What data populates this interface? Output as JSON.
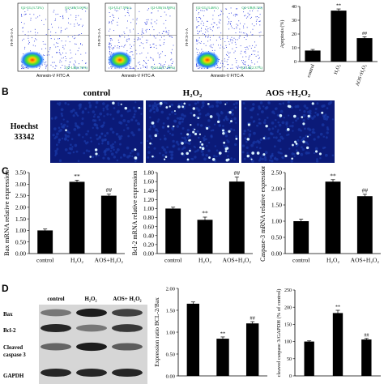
{
  "panels": {
    "b": "B",
    "c": "C",
    "d": "D"
  },
  "flow": {
    "x_label": "Annexin-V FITC-A",
    "y_label": "PI-PCS-5-A",
    "plots": [
      {
        "ul": "Q2-UL(3.72%)",
        "ur": "Q2-UR(5.00%)",
        "ll": "",
        "lr": "Q2-LR(1.70%)"
      },
      {
        "ul": "Q2-UL(7.59%)",
        "ur": "Q2-UR(16.68%)",
        "ll": "",
        "lr": "Q2-LR(17.79%)"
      },
      {
        "ul": "Q2-UL(3.46%)",
        "ur": "Q2-UR(8.5%)",
        "ll": "",
        "lr": "Q2-LR(2.37%)"
      }
    ]
  },
  "hoechst": {
    "row_label_1": "Hoechst",
    "row_label_2": "33342",
    "headers": [
      "control",
      "H₂O₂",
      "AOS +H₂O₂"
    ]
  },
  "western": {
    "headers": [
      "control",
      "H₂O₂",
      "AOS+ H₂O₂"
    ],
    "rows": [
      "Bax",
      "Bcl-2",
      "Cleaved caspase 3",
      "GAPDH"
    ]
  },
  "chart_data": [
    {
      "id": "apoptosis",
      "type": "bar",
      "categories": [
        "control",
        "H₂O₂",
        "AOS+H₂O₂"
      ],
      "values": [
        8,
        37,
        17
      ],
      "errors": [
        0.8,
        1.2,
        1.0
      ],
      "annotations": [
        "",
        "**",
        "##"
      ],
      "ylabel": "Apoptosis (%)",
      "ylim": [
        0,
        40
      ],
      "yticks": [
        "0",
        "10",
        "20",
        "30",
        "40"
      ]
    },
    {
      "id": "bax",
      "type": "bar",
      "categories": [
        "control",
        "H₂O₂",
        "AOS+H₂O₂"
      ],
      "values": [
        1.0,
        3.1,
        2.5
      ],
      "errors": [
        0.06,
        0.07,
        0.07
      ],
      "annotations": [
        "",
        "**",
        "##"
      ],
      "ylabel": "Bax mRNA relative expression",
      "ylim": [
        0,
        3.5
      ],
      "yticks": [
        "0.00",
        "0.50",
        "1.00",
        "1.50",
        "2.00",
        "2.50",
        "3.00",
        "3.50"
      ]
    },
    {
      "id": "bcl2",
      "type": "bar",
      "categories": [
        "control",
        "H₂O₂",
        "AOS+H₂O₂"
      ],
      "values": [
        1.0,
        0.75,
        1.6
      ],
      "errors": [
        0.03,
        0.06,
        0.1
      ],
      "annotations": [
        "",
        "**",
        "##"
      ],
      "ylabel": "Bcl-2 mRNA relative expression",
      "ylim": [
        0,
        1.8
      ],
      "yticks": [
        "0.00",
        "0.20",
        "0.40",
        "0.60",
        "0.80",
        "1.00",
        "1.20",
        "1.40",
        "1.60",
        "1.80"
      ]
    },
    {
      "id": "casp3",
      "type": "bar",
      "categories": [
        "control",
        "H₂O₂",
        "AOS+H₂O₂"
      ],
      "values": [
        1.0,
        2.22,
        1.77
      ],
      "errors": [
        0.06,
        0.06,
        0.06
      ],
      "annotations": [
        "",
        "**",
        "##"
      ],
      "ylabel": "Caspase-3 mRNA relative expression",
      "ylim": [
        0,
        2.5
      ],
      "yticks": [
        "0.00",
        "0.50",
        "1.00",
        "1.50",
        "2.00",
        "2.50"
      ]
    },
    {
      "id": "bcl2bax",
      "type": "bar",
      "categories": [
        "",
        "",
        ""
      ],
      "values": [
        1.65,
        0.85,
        1.2
      ],
      "errors": [
        0.04,
        0.04,
        0.04
      ],
      "annotations": [
        "",
        "**",
        "##"
      ],
      "ylabel": "Expression ratio BCL-2/Bax",
      "ylim": [
        0,
        2.0
      ],
      "yticks": [
        "0.00",
        "0.50",
        "1.00",
        "1.50",
        "2.00"
      ]
    },
    {
      "id": "cleavedcasp3",
      "type": "bar",
      "categories": [
        "",
        "",
        ""
      ],
      "values": [
        100,
        183,
        106
      ],
      "errors": [
        2,
        8,
        3
      ],
      "annotations": [
        "",
        "**",
        "##"
      ],
      "ylabel": "cleaved caspase 3/GAPDH (% of control)",
      "ylim": [
        0,
        250
      ],
      "yticks": [
        "0",
        "50",
        "100",
        "150",
        "200",
        "250"
      ]
    }
  ]
}
